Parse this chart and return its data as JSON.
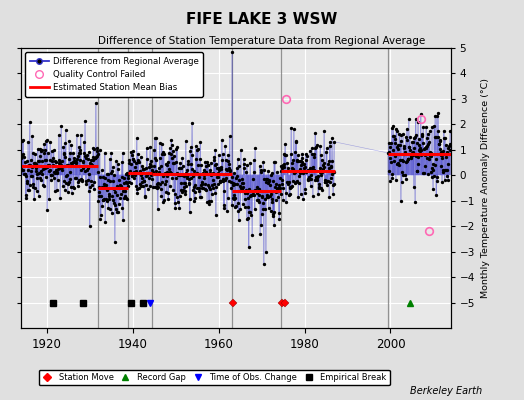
{
  "title": "FIFE LAKE 3 WSW",
  "subtitle": "Difference of Station Temperature Data from Regional Average",
  "ylabel": "Monthly Temperature Anomaly Difference (°C)",
  "xlim": [
    1914,
    2014
  ],
  "ylim": [
    -6,
    5
  ],
  "yticks": [
    -5,
    -4,
    -3,
    -2,
    -1,
    0,
    1,
    2,
    3,
    4,
    5
  ],
  "xticks": [
    1920,
    1940,
    1960,
    1980,
    2000
  ],
  "bg_color": "#e0e0e0",
  "plot_bg": "#e8e8e8",
  "grid_color": "#ffffff",
  "line_color": "#3333cc",
  "dot_color": "black",
  "bias_color": "red",
  "qc_color": "#ff69b4",
  "segments": [
    {
      "start": 1914.0,
      "end": 1921.0,
      "bias": 0.35
    },
    {
      "start": 1921.0,
      "end": 1932.0,
      "bias": 0.35
    },
    {
      "start": 1932.0,
      "end": 1939.0,
      "bias": -0.5
    },
    {
      "start": 1939.0,
      "end": 1944.5,
      "bias": 0.1
    },
    {
      "start": 1944.5,
      "end": 1963.0,
      "bias": 0.05
    },
    {
      "start": 1963.0,
      "end": 1974.5,
      "bias": -0.6
    },
    {
      "start": 1974.5,
      "end": 1987.0,
      "bias": 0.15
    },
    {
      "start": 1987.0,
      "end": 1999.5,
      "bias": 0.15
    },
    {
      "start": 1999.5,
      "end": 2014.0,
      "bias": 0.85
    }
  ],
  "segment_vlines": [
    1932.0,
    1939.0,
    1944.5,
    1963.0,
    1974.5,
    1999.5
  ],
  "data_gap_start": 1987.0,
  "data_gap_end": 1999.5,
  "station_moves": [
    1963.3,
    1974.8,
    1975.5
  ],
  "record_gaps": [
    2004.5
  ],
  "obs_changes": [
    1944.0
  ],
  "empirical_breaks": [
    1921.5,
    1928.5,
    1939.5,
    1942.5
  ],
  "qc_failed_times": [
    1975.6,
    2007.0,
    2009.0
  ],
  "qc_failed_values": [
    3.0,
    2.2,
    -2.2
  ],
  "marker_y": -5.0,
  "seed": 42
}
